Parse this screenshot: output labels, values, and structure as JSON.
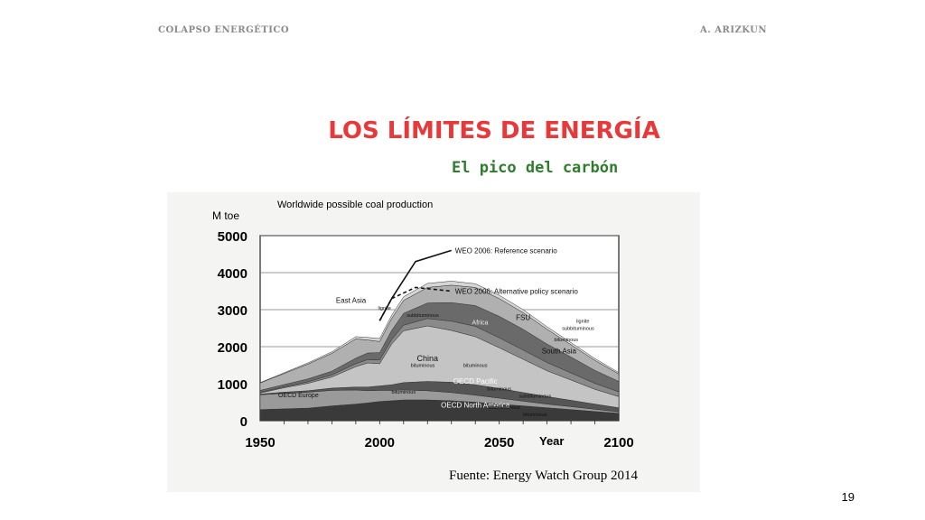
{
  "header": {
    "left": "COLAPSO ENERGÉTICO",
    "right": "A. ARIZKUN"
  },
  "slide": {
    "title": "LOS LÍMITES DE ENERGÍA",
    "subtitle": "El pico del carbón",
    "page_number": "19"
  },
  "chart_data": {
    "type": "area",
    "title": "Worldwide possible coal production",
    "ylabel": "M toe",
    "xlabel": "Year",
    "xlim": [
      1950,
      2100
    ],
    "ylim": [
      0,
      5000
    ],
    "x_ticks": [
      "1950",
      "2000",
      "2050",
      "2100"
    ],
    "y_ticks": [
      "0",
      "1000",
      "2000",
      "3000",
      "4000",
      "5000"
    ],
    "grid": true,
    "source": "Fuente: Energy Watch Group 2014",
    "x": [
      1950,
      1960,
      1970,
      1980,
      1990,
      1995,
      2000,
      2005,
      2010,
      2020,
      2030,
      2040,
      2050,
      2060,
      2070,
      2080,
      2090,
      2100
    ],
    "series": [
      {
        "name": "OECD North America",
        "color": "#3a3a3a",
        "values": [
          300,
          320,
          340,
          400,
          450,
          480,
          520,
          540,
          560,
          560,
          540,
          500,
          450,
          400,
          350,
          300,
          250,
          200
        ]
      },
      {
        "name": "OECD Europe",
        "color": "#9a9a9a",
        "values": [
          400,
          420,
          430,
          420,
          380,
          330,
          300,
          280,
          270,
          250,
          220,
          190,
          160,
          130,
          100,
          80,
          60,
          40
        ]
      },
      {
        "name": "OECD Pacific",
        "color": "#555555",
        "values": [
          20,
          30,
          40,
          60,
          80,
          100,
          120,
          150,
          200,
          250,
          280,
          280,
          260,
          230,
          200,
          170,
          140,
          110
        ]
      },
      {
        "name": "China",
        "color": "#c4c4c4",
        "values": [
          30,
          120,
          200,
          300,
          550,
          650,
          600,
          1100,
          1400,
          1500,
          1400,
          1300,
          1100,
          900,
          700,
          550,
          400,
          300
        ]
      },
      {
        "name": "Africa",
        "color": "#8a8a8a",
        "values": [
          20,
          25,
          40,
          60,
          80,
          90,
          100,
          120,
          150,
          200,
          250,
          280,
          270,
          250,
          220,
          190,
          160,
          130
        ]
      },
      {
        "name": "South Asia",
        "color": "#6a6a6a",
        "values": [
          50,
          60,
          80,
          100,
          150,
          180,
          200,
          250,
          320,
          420,
          500,
          560,
          580,
          560,
          500,
          430,
          350,
          280
        ]
      },
      {
        "name": "FSU",
        "color": "#b0b0b0",
        "values": [
          200,
          300,
          400,
          480,
          520,
          350,
          300,
          320,
          350,
          420,
          470,
          490,
          480,
          450,
          400,
          330,
          270,
          200
        ]
      },
      {
        "name": "East Asia",
        "color": "#d6d6d6",
        "values": [
          10,
          20,
          30,
          40,
          60,
          70,
          80,
          90,
          100,
          110,
          110,
          100,
          90,
          80,
          70,
          60,
          50,
          40
        ]
      }
    ],
    "scenarios": [
      {
        "name": "WEO 2006: Reference scenario",
        "style": "solid",
        "x": [
          2000,
          2005,
          2015,
          2030
        ],
        "values": [
          2700,
          3300,
          4300,
          4600
        ]
      },
      {
        "name": "WEO 2006: Alternative policy scenario",
        "style": "dashed",
        "x": [
          2000,
          2005,
          2015,
          2030
        ],
        "values": [
          2700,
          3300,
          3600,
          3500
        ]
      }
    ],
    "annotations": [
      "subbituminous",
      "bituminous",
      "lignite",
      "subbituminous",
      "bituminous",
      "subbituminous",
      "bituminous",
      "bituminous",
      "lignite",
      "subbituminous",
      "bituminous",
      "bituminous"
    ]
  }
}
